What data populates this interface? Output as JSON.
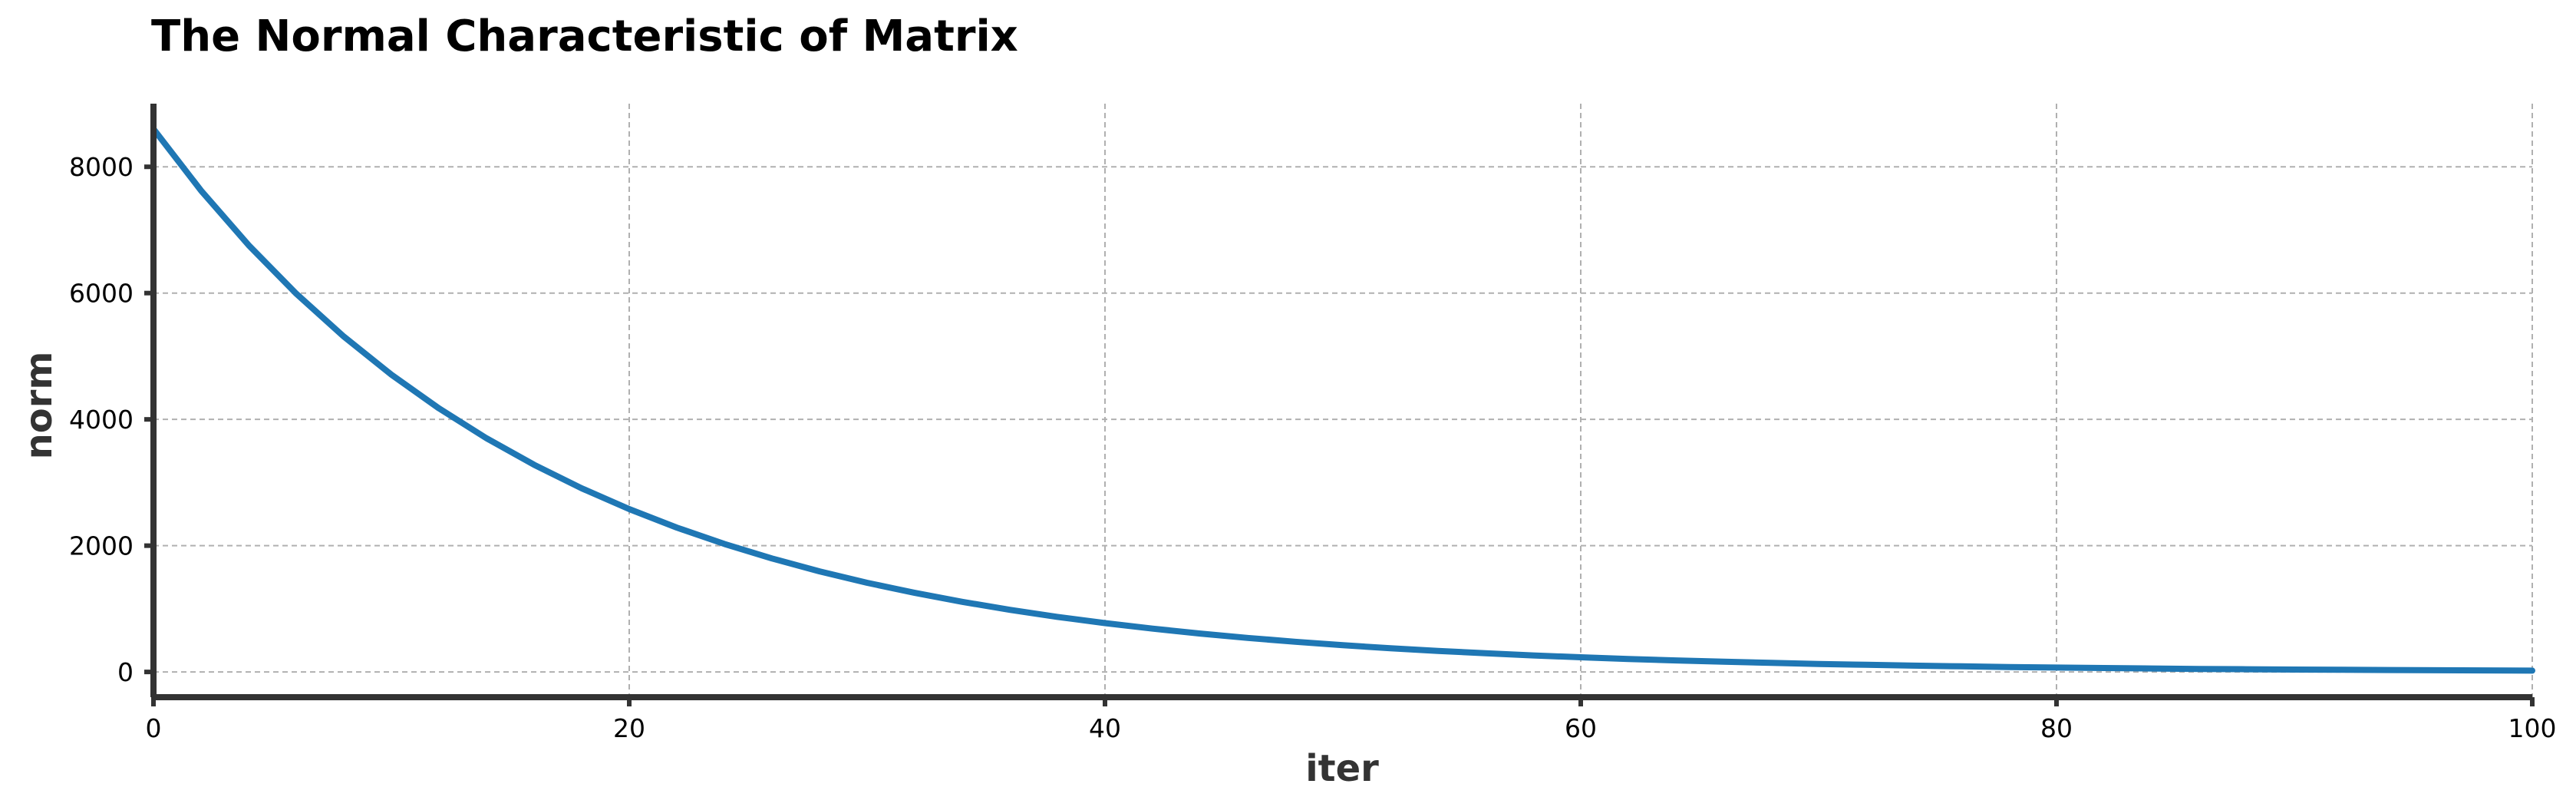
{
  "chart_data": {
    "type": "line",
    "title": "The Normal Characteristic of Matrix",
    "xlabel": "iter",
    "ylabel": "norm",
    "xlim": [
      0,
      100
    ],
    "ylim": [
      -400,
      9000
    ],
    "xticks": [
      0,
      20,
      40,
      60,
      80,
      100
    ],
    "xtick_labels": [
      "0",
      "20",
      "40",
      "60",
      "80",
      "100"
    ],
    "yticks": [
      0,
      2000,
      4000,
      6000,
      8000
    ],
    "ytick_labels": [
      "0",
      "2000",
      "4000",
      "6000",
      "8000"
    ],
    "grid": true,
    "line_color": "#1f77b4",
    "series": [
      {
        "x": [
          0,
          2,
          4,
          6,
          8,
          10,
          12,
          14,
          16,
          18,
          20,
          22,
          24,
          26,
          28,
          30,
          32,
          34,
          36,
          38,
          40,
          42,
          44,
          46,
          48,
          50,
          52,
          54,
          56,
          58,
          60,
          62,
          64,
          66,
          68,
          70,
          72,
          74,
          76,
          78,
          80,
          82,
          84,
          86,
          88,
          90,
          92,
          94,
          96,
          98,
          100
        ],
        "values": [
          8600,
          7624,
          6759,
          5992,
          5312,
          4709,
          4175,
          3701,
          3281,
          2909,
          2579,
          2286,
          2027,
          1797,
          1593,
          1412,
          1252,
          1110,
          984,
          872,
          773,
          686,
          608,
          539,
          478,
          423,
          375,
          333,
          295,
          262,
          232,
          206,
          182,
          162,
          143,
          127,
          113,
          100,
          89,
          78,
          70,
          62,
          55,
          48,
          43,
          38,
          34,
          30,
          27,
          24,
          21
        ]
      }
    ]
  }
}
